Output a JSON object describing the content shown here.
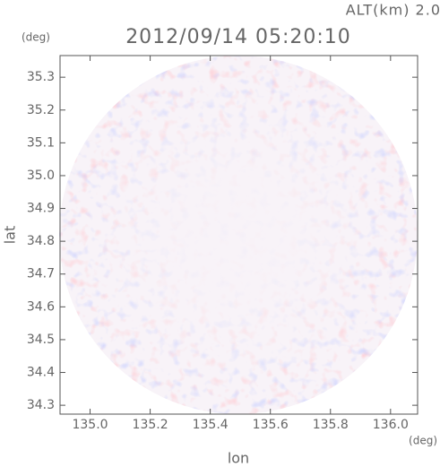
{
  "chart_data": {
    "type": "radar-map",
    "title": "2012/09/14 05:20:10",
    "subtitle": "ALT(km) 2.0",
    "x_label": "lon",
    "x_unit": "(deg)",
    "y_label": "lat",
    "y_unit": "(deg)",
    "xlim": [
      134.9,
      136.09
    ],
    "ylim": [
      34.273,
      35.366
    ],
    "xticks": [
      {
        "value": 135.0,
        "label": "135.0"
      },
      {
        "value": 135.2,
        "label": "135.2"
      },
      {
        "value": 135.4,
        "label": "135.4"
      },
      {
        "value": 135.6,
        "label": "135.6"
      },
      {
        "value": 135.8,
        "label": "135.8"
      },
      {
        "value": 136.0,
        "label": "136.0"
      }
    ],
    "yticks": [
      {
        "value": 34.3,
        "label": "34.3"
      },
      {
        "value": 34.4,
        "label": "34.4"
      },
      {
        "value": 34.5,
        "label": "34.5"
      },
      {
        "value": 34.6,
        "label": "34.6"
      },
      {
        "value": 34.7,
        "label": "34.7"
      },
      {
        "value": 34.8,
        "label": "34.8"
      },
      {
        "value": 34.9,
        "label": "34.9"
      },
      {
        "value": 35.0,
        "label": "35.0"
      },
      {
        "value": 35.1,
        "label": "35.1"
      },
      {
        "value": 35.2,
        "label": "35.2"
      },
      {
        "value": 35.3,
        "label": "35.3"
      }
    ]
  }
}
